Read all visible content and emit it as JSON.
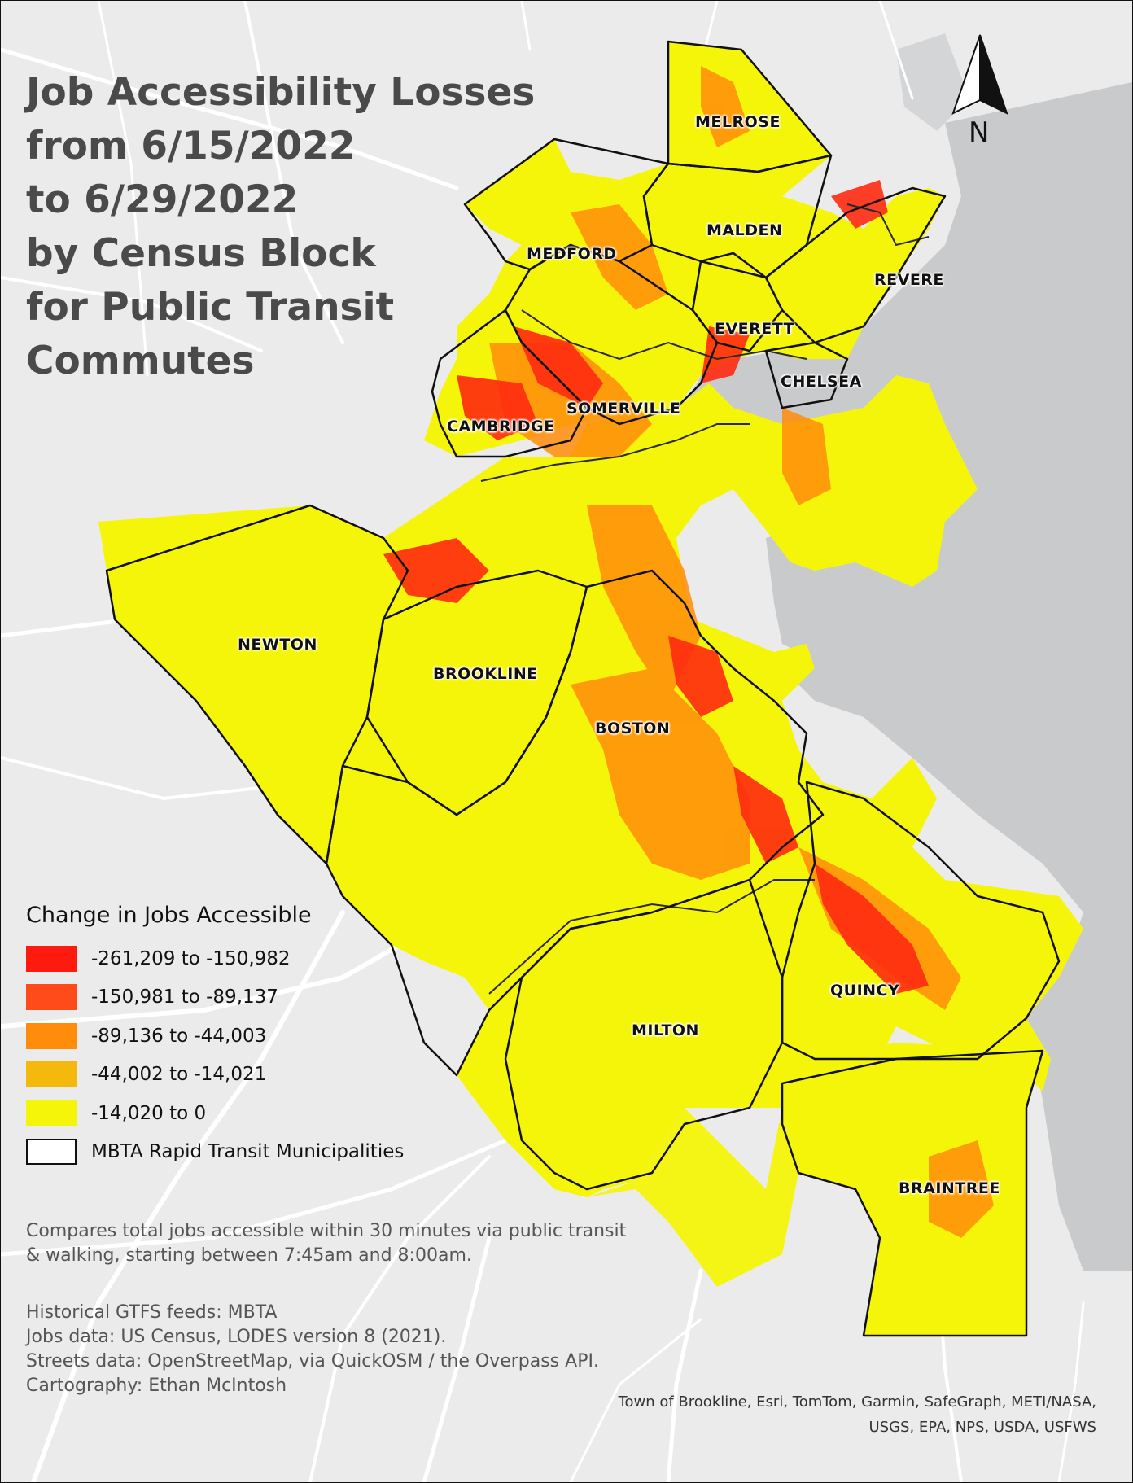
{
  "title_lines": [
    "Job Accessibility Losses",
    "from 6/15/2022",
    "to 6/29/2022",
    "by Census Block",
    "for Public Transit",
    "Commutes"
  ],
  "north_label": "N",
  "municipalities": {
    "melrose": "MELROSE",
    "malden": "MALDEN",
    "medford": "MEDFORD",
    "revere": "REVERE",
    "everett": "EVERETT",
    "chelsea": "CHELSEA",
    "somerville": "SOMERVILLE",
    "cambridge": "CAMBRIDGE",
    "newton": "NEWTON",
    "brookline": "BROOKLINE",
    "boston": "BOSTON",
    "quincy": "QUINCY",
    "milton": "MILTON",
    "braintree": "BRAINTREE"
  },
  "legend": {
    "title": "Change in Jobs Accessible",
    "items": [
      {
        "label": "-261,209 to -150,982",
        "color": "#ff1a10"
      },
      {
        "label": "-150,981 to -89,137",
        "color": "#ff4a1a"
      },
      {
        "label": "-89,136 to -44,003",
        "color": "#ff8c0a"
      },
      {
        "label": "-44,002 to -14,021",
        "color": "#f5b80c"
      },
      {
        "label": "-14,020 to 0",
        "color": "#f5f50a"
      }
    ],
    "outline_label": "MBTA Rapid Transit Municipalities"
  },
  "notes": {
    "compare_line1": "Compares total jobs accessible within 30 minutes via public transit",
    "compare_line2": "& walking, starting between 7:45am and 8:00am.",
    "source_gtfs": "Historical GTFS feeds: MBTA",
    "source_jobs": "Jobs data: US Census, LODES version 8 (2021).",
    "source_streets": "Streets data: OpenStreetMap, via QuickOSM / the Overpass API.",
    "cartography": "Cartography: Ethan McIntosh"
  },
  "attribution": {
    "line1": "Town of Brookline, Esri, TomTom, Garmin, SafeGraph, METI/NASA,",
    "line2": "USGS, EPA, NPS, USDA, USFWS"
  },
  "colors": {
    "background": "#ebebeb",
    "water": "#c9cacc",
    "roads": "#ffffff",
    "boundary": "#111111",
    "title": "#4a4a4a"
  }
}
